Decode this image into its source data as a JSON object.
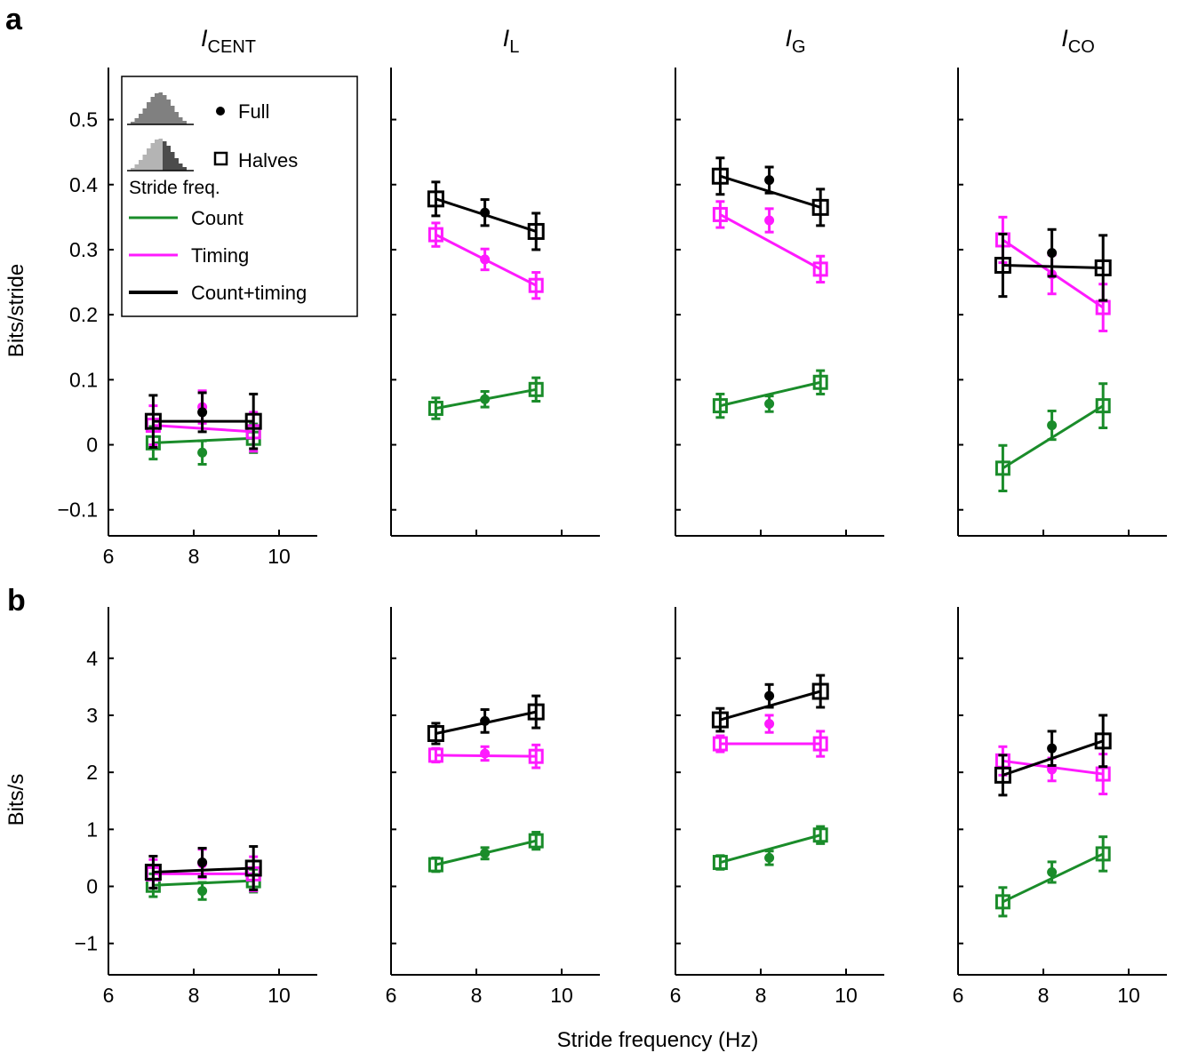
{
  "figure": {
    "panel_labels": [
      "a",
      "b"
    ],
    "xlabel": "Stride frequency (Hz)"
  },
  "legend": {
    "full": "Full",
    "halves": "Halves",
    "stride_freq": "Stride freq.",
    "count": "Count",
    "timing": "Timing",
    "count_timing": "Count+timing"
  },
  "colors": {
    "count": "#1a8c2a",
    "timing": "#ff1aff",
    "count_timing": "#000000",
    "hist_full": "#808080",
    "hist_half_left": "#b4b4b4",
    "hist_half_right": "#4c4c4c"
  },
  "chart_data": [
    {
      "id": "a-cent",
      "row": "a",
      "type": "scatter",
      "title": "I",
      "title_sub": "CENT",
      "ylabel": "Bits/stride",
      "ylim": [
        -0.14,
        0.58
      ],
      "yticks": [
        -0.1,
        0,
        0.1,
        0.2,
        0.3,
        0.4,
        0.5
      ],
      "ytick_labels": [
        "−0.1",
        "0",
        "0.1",
        "0.2",
        "0.3",
        "0.4",
        "0.5"
      ],
      "xlim": [
        6,
        11
      ],
      "xticks": [
        6,
        8,
        10
      ],
      "xtick_labels": [
        "6",
        "8",
        "10"
      ],
      "series": [
        {
          "name": "Count",
          "halves": [
            [
              7.05,
              0.003,
              0.025
            ],
            [
              9.4,
              0.01,
              0.022
            ]
          ],
          "full": [
            8.2,
            -0.012,
            0.018
          ]
        },
        {
          "name": "Timing",
          "halves": [
            [
              7.05,
              0.03,
              0.03
            ],
            [
              9.4,
              0.02,
              0.03
            ]
          ],
          "full": [
            8.2,
            0.058,
            0.025
          ]
        },
        {
          "name": "Count+timing",
          "halves": [
            [
              7.05,
              0.036,
              0.04
            ],
            [
              9.4,
              0.036,
              0.042
            ]
          ],
          "full": [
            8.2,
            0.05,
            0.03
          ]
        }
      ]
    },
    {
      "id": "a-l",
      "row": "a",
      "type": "scatter",
      "title": "I",
      "title_sub": "L",
      "ylabel": "",
      "ylim": [
        -0.14,
        0.58
      ],
      "yticks": [
        -0.1,
        0,
        0.1,
        0.2,
        0.3,
        0.4,
        0.5
      ],
      "ytick_labels": [],
      "xlim": [
        6,
        11
      ],
      "xticks": [
        6,
        8,
        10
      ],
      "xtick_labels": [],
      "series": [
        {
          "name": "Count",
          "halves": [
            [
              7.05,
              0.056,
              0.016
            ],
            [
              9.4,
              0.085,
              0.018
            ]
          ],
          "full": [
            8.2,
            0.07,
            0.012
          ]
        },
        {
          "name": "Timing",
          "halves": [
            [
              7.05,
              0.323,
              0.018
            ],
            [
              9.4,
              0.245,
              0.02
            ]
          ],
          "full": [
            8.2,
            0.285,
            0.016
          ]
        },
        {
          "name": "Count+timing",
          "halves": [
            [
              7.05,
              0.378,
              0.026
            ],
            [
              9.4,
              0.328,
              0.028
            ]
          ],
          "full": [
            8.2,
            0.357,
            0.02
          ]
        }
      ]
    },
    {
      "id": "a-g",
      "row": "a",
      "type": "scatter",
      "title": "I",
      "title_sub": "G",
      "ylabel": "",
      "ylim": [
        -0.14,
        0.58
      ],
      "yticks": [
        -0.1,
        0,
        0.1,
        0.2,
        0.3,
        0.4,
        0.5
      ],
      "ytick_labels": [],
      "xlim": [
        6,
        11
      ],
      "xticks": [
        6,
        8,
        10
      ],
      "xtick_labels": [],
      "series": [
        {
          "name": "Count",
          "halves": [
            [
              7.05,
              0.06,
              0.018
            ],
            [
              9.4,
              0.096,
              0.018
            ]
          ],
          "full": [
            8.2,
            0.063,
            0.012
          ]
        },
        {
          "name": "Timing",
          "halves": [
            [
              7.05,
              0.354,
              0.02
            ],
            [
              9.4,
              0.27,
              0.02
            ]
          ],
          "full": [
            8.2,
            0.345,
            0.018
          ]
        },
        {
          "name": "Count+timing",
          "halves": [
            [
              7.05,
              0.413,
              0.028
            ],
            [
              9.4,
              0.365,
              0.028
            ]
          ],
          "full": [
            8.2,
            0.407,
            0.02
          ]
        }
      ]
    },
    {
      "id": "a-co",
      "row": "a",
      "type": "scatter",
      "title": "I",
      "title_sub": "CO",
      "ylabel": "",
      "ylim": [
        -0.14,
        0.58
      ],
      "yticks": [
        -0.1,
        0,
        0.1,
        0.2,
        0.3,
        0.4,
        0.5
      ],
      "ytick_labels": [],
      "xlim": [
        6,
        11
      ],
      "xticks": [
        6,
        8,
        10
      ],
      "xtick_labels": [],
      "series": [
        {
          "name": "Count",
          "halves": [
            [
              7.05,
              -0.036,
              0.035
            ],
            [
              9.4,
              0.06,
              0.034
            ]
          ],
          "full": [
            8.2,
            0.03,
            0.022
          ]
        },
        {
          "name": "Timing",
          "halves": [
            [
              7.05,
              0.315,
              0.035
            ],
            [
              9.4,
              0.211,
              0.036
            ]
          ],
          "full": [
            8.2,
            0.262,
            0.03
          ]
        },
        {
          "name": "Count+timing",
          "halves": [
            [
              7.05,
              0.276,
              0.048
            ],
            [
              9.4,
              0.272,
              0.05
            ]
          ],
          "full": [
            8.2,
            0.295,
            0.036
          ]
        }
      ]
    },
    {
      "id": "b-cent",
      "row": "b",
      "type": "scatter",
      "title": "",
      "title_sub": "",
      "ylabel": "Bits/s",
      "ylim": [
        -1.55,
        4.9
      ],
      "yticks": [
        -1,
        0,
        1,
        2,
        3,
        4
      ],
      "ytick_labels": [
        "−1",
        "0",
        "1",
        "2",
        "3",
        "4"
      ],
      "xlim": [
        6,
        11
      ],
      "xticks": [
        6,
        8,
        10
      ],
      "xtick_labels": [
        "6",
        "8",
        "10"
      ],
      "series": [
        {
          "name": "Count",
          "halves": [
            [
              7.05,
              0.02,
              0.2
            ],
            [
              9.4,
              0.1,
              0.2
            ]
          ],
          "full": [
            8.2,
            -0.08,
            0.15
          ]
        },
        {
          "name": "Timing",
          "halves": [
            [
              7.05,
              0.22,
              0.25
            ],
            [
              9.4,
              0.22,
              0.3
            ]
          ],
          "full": [
            8.2,
            0.4,
            0.25
          ]
        },
        {
          "name": "Count+timing",
          "halves": [
            [
              7.05,
              0.25,
              0.28
            ],
            [
              9.4,
              0.32,
              0.38
            ]
          ],
          "full": [
            8.2,
            0.42,
            0.25
          ]
        }
      ]
    },
    {
      "id": "b-l",
      "row": "b",
      "type": "scatter",
      "title": "",
      "title_sub": "",
      "ylabel": "",
      "ylim": [
        -1.55,
        4.9
      ],
      "yticks": [
        -1,
        0,
        1,
        2,
        3,
        4
      ],
      "ytick_labels": [],
      "xlim": [
        6,
        11
      ],
      "xticks": [
        6,
        8,
        10
      ],
      "xtick_labels": [
        "6",
        "8",
        "10"
      ],
      "series": [
        {
          "name": "Count",
          "halves": [
            [
              7.05,
              0.38,
              0.12
            ],
            [
              9.4,
              0.8,
              0.15
            ]
          ],
          "full": [
            8.2,
            0.58,
            0.1
          ]
        },
        {
          "name": "Timing",
          "halves": [
            [
              7.05,
              2.3,
              0.12
            ],
            [
              9.4,
              2.28,
              0.2
            ]
          ],
          "full": [
            8.2,
            2.33,
            0.12
          ]
        },
        {
          "name": "Count+timing",
          "halves": [
            [
              7.05,
              2.68,
              0.18
            ],
            [
              9.4,
              3.06,
              0.28
            ]
          ],
          "full": [
            8.2,
            2.9,
            0.2
          ]
        }
      ]
    },
    {
      "id": "b-g",
      "row": "b",
      "type": "scatter",
      "title": "",
      "title_sub": "",
      "ylabel": "",
      "ylim": [
        -1.55,
        4.9
      ],
      "yticks": [
        -1,
        0,
        1,
        2,
        3,
        4
      ],
      "ytick_labels": [],
      "xlim": [
        6,
        11
      ],
      "xticks": [
        6,
        8,
        10
      ],
      "xtick_labels": [
        "6",
        "8",
        "10"
      ],
      "series": [
        {
          "name": "Count",
          "halves": [
            [
              7.05,
              0.42,
              0.12
            ],
            [
              9.4,
              0.9,
              0.15
            ]
          ],
          "full": [
            8.2,
            0.5,
            0.12
          ]
        },
        {
          "name": "Timing",
          "halves": [
            [
              7.05,
              2.5,
              0.14
            ],
            [
              9.4,
              2.5,
              0.22
            ]
          ],
          "full": [
            8.2,
            2.85,
            0.15
          ]
        },
        {
          "name": "Count+timing",
          "halves": [
            [
              7.05,
              2.92,
              0.2
            ],
            [
              9.4,
              3.42,
              0.28
            ]
          ],
          "full": [
            8.2,
            3.34,
            0.2
          ]
        }
      ]
    },
    {
      "id": "b-co",
      "row": "b",
      "type": "scatter",
      "title": "",
      "title_sub": "",
      "ylabel": "",
      "ylim": [
        -1.55,
        4.9
      ],
      "yticks": [
        -1,
        0,
        1,
        2,
        3,
        4
      ],
      "ytick_labels": [],
      "xlim": [
        6,
        11
      ],
      "xticks": [
        6,
        8,
        10
      ],
      "xtick_labels": [
        "6",
        "8",
        "10"
      ],
      "series": [
        {
          "name": "Count",
          "halves": [
            [
              7.05,
              -0.27,
              0.25
            ],
            [
              9.4,
              0.57,
              0.3
            ]
          ],
          "full": [
            8.2,
            0.25,
            0.18
          ]
        },
        {
          "name": "Timing",
          "halves": [
            [
              7.05,
              2.2,
              0.25
            ],
            [
              9.4,
              1.97,
              0.35
            ]
          ],
          "full": [
            8.2,
            2.05,
            0.2
          ]
        },
        {
          "name": "Count+timing",
          "halves": [
            [
              7.05,
              1.95,
              0.35
            ],
            [
              9.4,
              2.55,
              0.45
            ]
          ],
          "full": [
            8.2,
            2.42,
            0.3
          ]
        }
      ]
    }
  ]
}
